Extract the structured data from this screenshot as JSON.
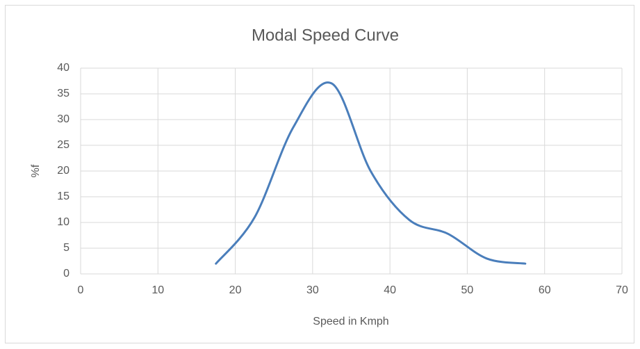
{
  "chart_data": {
    "type": "line",
    "title": "Modal Speed Curve",
    "x_label": "Speed in Kmph",
    "y_label": "%f",
    "x": [
      17.5,
      22.5,
      27.5,
      32.5,
      37.5,
      42.5,
      47.5,
      52.5,
      57.5
    ],
    "series": [
      {
        "name": "%f",
        "color": "#4a7ebb",
        "values": [
          2,
          11,
          28.5,
          37,
          20,
          10.5,
          7.8,
          3,
          2
        ]
      }
    ],
    "xlim": [
      0,
      70
    ],
    "xticks": [
      0,
      10,
      20,
      30,
      40,
      50,
      60,
      70
    ],
    "ylim": [
      0,
      40
    ],
    "yticks": [
      0,
      5,
      10,
      15,
      20,
      25,
      30,
      35,
      40
    ],
    "grid": true,
    "smooth": true
  }
}
